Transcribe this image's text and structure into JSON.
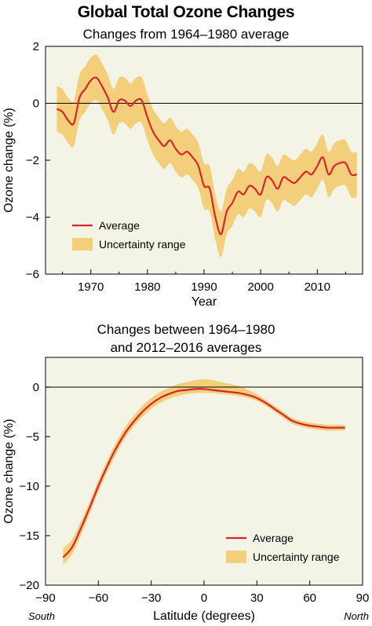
{
  "title": "Global Total Ozone Changes",
  "panel1_subtitle": "Changes from 1964–1980 average",
  "panel2_subtitle_line1": "Changes between 1964–1980",
  "panel2_subtitle_line2": "and 2012–2016 averages",
  "colors": {
    "line": "#d7262b",
    "band": "#f4cf7b",
    "panel_bg": "#f3f3e6"
  },
  "chart_data": [
    {
      "type": "line",
      "title": "Changes from 1964–1980 average",
      "xlabel": "Year",
      "ylabel": "Ozone change (%)",
      "xlim": [
        1962,
        2018
      ],
      "ylim": [
        -6,
        2
      ],
      "xticks": [
        1970,
        1980,
        1990,
        2000,
        2010
      ],
      "yticks": [
        2,
        0,
        -2,
        -4,
        -6
      ],
      "legend": {
        "position": "bottom-left",
        "entries": [
          "Average",
          "Uncertainty range"
        ]
      },
      "series": [
        {
          "name": "Average",
          "x": [
            1964,
            1965,
            1966,
            1967,
            1968,
            1969,
            1970,
            1971,
            1972,
            1973,
            1974,
            1975,
            1976,
            1977,
            1978,
            1979,
            1980,
            1981,
            1982,
            1983,
            1984,
            1985,
            1986,
            1987,
            1988,
            1989,
            1990,
            1991,
            1992,
            1993,
            1994,
            1995,
            1996,
            1997,
            1998,
            1999,
            2000,
            2001,
            2002,
            2003,
            2004,
            2005,
            2006,
            2007,
            2008,
            2009,
            2010,
            2011,
            2012,
            2013,
            2014,
            2015,
            2016,
            2017
          ],
          "values": [
            -0.2,
            -0.3,
            -0.6,
            -0.7,
            0.2,
            0.5,
            0.8,
            0.9,
            0.6,
            0.2,
            -0.3,
            0.1,
            0.1,
            -0.1,
            0.1,
            0.1,
            -0.5,
            -1.0,
            -1.3,
            -1.5,
            -1.3,
            -1.6,
            -1.8,
            -1.7,
            -1.9,
            -2.2,
            -2.9,
            -3.0,
            -4.0,
            -4.6,
            -3.8,
            -3.5,
            -3.1,
            -3.2,
            -2.9,
            -3.0,
            -3.2,
            -2.6,
            -2.7,
            -3.0,
            -2.6,
            -2.7,
            -2.8,
            -2.6,
            -2.4,
            -2.5,
            -2.2,
            -1.9,
            -2.5,
            -2.2,
            -2.1,
            -2.1,
            -2.5,
            -2.5
          ]
        },
        {
          "name": "Uncertainty range",
          "x": [
            1964,
            1965,
            1966,
            1967,
            1968,
            1969,
            1970,
            1971,
            1972,
            1973,
            1974,
            1975,
            1976,
            1977,
            1978,
            1979,
            1980,
            1981,
            1982,
            1983,
            1984,
            1985,
            1986,
            1987,
            1988,
            1989,
            1990,
            1991,
            1992,
            1993,
            1994,
            1995,
            1996,
            1997,
            1998,
            1999,
            2000,
            2001,
            2002,
            2003,
            2004,
            2005,
            2006,
            2007,
            2008,
            2009,
            2010,
            2011,
            2012,
            2013,
            2014,
            2015,
            2016,
            2017
          ],
          "lower": [
            -1.0,
            -1.1,
            -1.4,
            -1.5,
            -0.6,
            -0.3,
            0.0,
            0.1,
            -0.2,
            -0.6,
            -1.1,
            -0.7,
            -0.7,
            -0.9,
            -0.7,
            -0.7,
            -1.3,
            -1.8,
            -2.1,
            -2.3,
            -2.1,
            -2.4,
            -2.6,
            -2.5,
            -2.7,
            -3.0,
            -3.7,
            -3.8,
            -4.8,
            -5.4,
            -4.6,
            -4.3,
            -3.9,
            -4.0,
            -3.7,
            -3.8,
            -4.0,
            -3.4,
            -3.5,
            -3.8,
            -3.4,
            -3.5,
            -3.6,
            -3.4,
            -3.2,
            -3.3,
            -3.0,
            -2.7,
            -3.3,
            -3.0,
            -2.9,
            -2.9,
            -3.3,
            -3.3
          ],
          "upper": [
            0.6,
            0.5,
            0.2,
            0.1,
            1.0,
            1.3,
            1.6,
            1.7,
            1.4,
            1.0,
            0.5,
            0.9,
            0.9,
            0.7,
            0.9,
            0.9,
            0.3,
            -0.2,
            -0.5,
            -0.7,
            -0.5,
            -0.8,
            -1.0,
            -0.9,
            -1.1,
            -1.4,
            -2.1,
            -2.2,
            -3.2,
            -3.8,
            -3.0,
            -2.7,
            -2.3,
            -2.4,
            -2.1,
            -2.2,
            -2.4,
            -1.8,
            -1.9,
            -2.2,
            -1.8,
            -1.9,
            -2.0,
            -1.8,
            -1.6,
            -1.7,
            -1.4,
            -1.1,
            -1.7,
            -1.4,
            -1.3,
            -1.3,
            -1.7,
            -1.7
          ]
        }
      ]
    },
    {
      "type": "line",
      "title": "Changes between 1964–1980 and 2012–2016 averages",
      "xlabel": "Latitude (degrees)",
      "ylabel": "Ozone change (%)",
      "xlim": [
        -90,
        90
      ],
      "ylim": [
        -20,
        3
      ],
      "xticks": [
        -90,
        -60,
        -30,
        0,
        30,
        60,
        90
      ],
      "yticks": [
        0,
        -5,
        -10,
        -15,
        -20
      ],
      "xtick_notes": {
        "left": "South",
        "right": "North"
      },
      "legend": {
        "position": "bottom-right",
        "entries": [
          "Average",
          "Uncertainty range"
        ]
      },
      "series": [
        {
          "name": "Average",
          "x": [
            -80,
            -75,
            -70,
            -65,
            -60,
            -55,
            -50,
            -45,
            -40,
            -35,
            -30,
            -25,
            -20,
            -15,
            -10,
            -5,
            0,
            5,
            10,
            15,
            20,
            25,
            30,
            35,
            40,
            45,
            50,
            55,
            60,
            65,
            70,
            75,
            80
          ],
          "values": [
            -17.2,
            -16.2,
            -14.3,
            -12.2,
            -10.0,
            -8.0,
            -6.2,
            -4.7,
            -3.5,
            -2.5,
            -1.7,
            -1.1,
            -0.7,
            -0.4,
            -0.3,
            -0.2,
            -0.2,
            -0.3,
            -0.4,
            -0.5,
            -0.6,
            -0.8,
            -1.1,
            -1.6,
            -2.2,
            -2.8,
            -3.4,
            -3.7,
            -3.9,
            -4.0,
            -4.1,
            -4.1,
            -4.1
          ]
        },
        {
          "name": "Uncertainty range",
          "x": [
            -80,
            -75,
            -70,
            -65,
            -60,
            -55,
            -50,
            -45,
            -40,
            -35,
            -30,
            -25,
            -20,
            -15,
            -10,
            -5,
            0,
            5,
            10,
            15,
            20,
            25,
            30,
            35,
            40,
            45,
            50,
            55,
            60,
            65,
            70,
            75,
            80
          ],
          "lower": [
            -17.9,
            -16.9,
            -15.0,
            -12.8,
            -10.6,
            -8.6,
            -6.8,
            -5.2,
            -4.0,
            -3.0,
            -2.2,
            -1.6,
            -1.2,
            -0.9,
            -0.7,
            -0.6,
            -0.6,
            -0.6,
            -0.7,
            -0.8,
            -0.9,
            -1.1,
            -1.4,
            -1.9,
            -2.5,
            -3.1,
            -3.7,
            -4.0,
            -4.2,
            -4.3,
            -4.4,
            -4.4,
            -4.4
          ],
          "upper": [
            -16.3,
            -15.4,
            -13.6,
            -11.6,
            -9.4,
            -7.4,
            -5.6,
            -4.1,
            -2.9,
            -1.9,
            -1.1,
            -0.5,
            -0.1,
            0.3,
            0.5,
            0.7,
            0.8,
            0.7,
            0.5,
            0.3,
            0.1,
            -0.3,
            -0.7,
            -1.3,
            -1.9,
            -2.5,
            -3.1,
            -3.4,
            -3.6,
            -3.7,
            -3.8,
            -3.8,
            -3.8
          ]
        }
      ]
    }
  ]
}
